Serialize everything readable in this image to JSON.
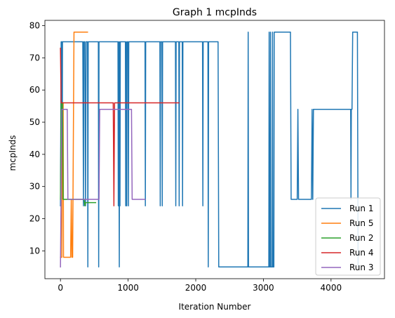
{
  "chart_data": {
    "type": "line",
    "title": "Graph 1 mcpInds",
    "xlabel": "Iteration Number",
    "ylabel": "mcpInds",
    "xlim": [
      -230,
      4790
    ],
    "ylim": [
      1.35,
      81.65
    ],
    "xticks": [
      0,
      1000,
      2000,
      3000,
      4000
    ],
    "yticks": [
      10,
      20,
      30,
      40,
      50,
      60,
      70,
      80
    ],
    "xtick_labels": [
      "0",
      "1000",
      "2000",
      "3000",
      "4000"
    ],
    "ytick_labels": [
      "10",
      "20",
      "30",
      "40",
      "50",
      "60",
      "70",
      "80"
    ],
    "grid": false,
    "legend_position": "lower-right",
    "series": [
      {
        "name": "Run 1",
        "color": "#1f77b4",
        "points": [
          [
            0,
            24
          ],
          [
            10,
            75
          ],
          [
            20,
            75
          ],
          [
            25,
            26
          ],
          [
            30,
            75
          ],
          [
            330,
            75
          ],
          [
            340,
            24
          ],
          [
            345,
            75
          ],
          [
            360,
            75
          ],
          [
            370,
            24
          ],
          [
            380,
            75
          ],
          [
            400,
            75
          ],
          [
            405,
            5
          ],
          [
            410,
            75
          ],
          [
            560,
            75
          ],
          [
            565,
            5
          ],
          [
            570,
            75
          ],
          [
            850,
            75
          ],
          [
            855,
            24
          ],
          [
            860,
            75
          ],
          [
            870,
            5
          ],
          [
            875,
            75
          ],
          [
            880,
            24
          ],
          [
            885,
            75
          ],
          [
            960,
            75
          ],
          [
            965,
            24
          ],
          [
            970,
            75
          ],
          [
            980,
            24
          ],
          [
            985,
            75
          ],
          [
            1000,
            75
          ],
          [
            1005,
            24
          ],
          [
            1010,
            75
          ],
          [
            1250,
            75
          ],
          [
            1255,
            24
          ],
          [
            1260,
            75
          ],
          [
            1470,
            75
          ],
          [
            1475,
            24
          ],
          [
            1480,
            75
          ],
          [
            1500,
            75
          ],
          [
            1505,
            24
          ],
          [
            1510,
            75
          ],
          [
            1700,
            75
          ],
          [
            1705,
            24
          ],
          [
            1710,
            75
          ],
          [
            1750,
            75
          ],
          [
            1755,
            24
          ],
          [
            1760,
            75
          ],
          [
            1800,
            75
          ],
          [
            1805,
            24
          ],
          [
            1810,
            75
          ],
          [
            2100,
            75
          ],
          [
            2105,
            24
          ],
          [
            2110,
            75
          ],
          [
            2180,
            75
          ],
          [
            2185,
            5
          ],
          [
            2190,
            75
          ],
          [
            2330,
            75
          ],
          [
            2340,
            5
          ],
          [
            2770,
            5
          ],
          [
            2775,
            78
          ],
          [
            2780,
            5
          ],
          [
            3080,
            5
          ],
          [
            3085,
            78
          ],
          [
            3090,
            5
          ],
          [
            3100,
            5
          ],
          [
            3105,
            78
          ],
          [
            3110,
            5
          ],
          [
            3130,
            5
          ],
          [
            3135,
            78
          ],
          [
            3140,
            5
          ],
          [
            3155,
            5
          ],
          [
            3160,
            78
          ],
          [
            3400,
            78
          ],
          [
            3410,
            26
          ],
          [
            3500,
            26
          ],
          [
            3510,
            54
          ],
          [
            3520,
            26
          ],
          [
            3710,
            26
          ],
          [
            3720,
            54
          ],
          [
            3730,
            26
          ],
          [
            3740,
            54
          ],
          [
            4290,
            54
          ],
          [
            4295,
            26
          ],
          [
            4300,
            54
          ],
          [
            4310,
            54
          ],
          [
            4320,
            78
          ],
          [
            4390,
            78
          ],
          [
            4400,
            5
          ]
        ]
      },
      {
        "name": "Run 5",
        "color": "#ff7f0e",
        "points": [
          [
            0,
            8
          ],
          [
            20,
            8
          ],
          [
            30,
            56
          ],
          [
            40,
            56
          ],
          [
            45,
            8
          ],
          [
            150,
            8
          ],
          [
            160,
            26
          ],
          [
            170,
            8
          ],
          [
            180,
            8
          ],
          [
            200,
            78
          ],
          [
            400,
            78
          ]
        ]
      },
      {
        "name": "Run 2",
        "color": "#2ca02c",
        "points": [
          [
            0,
            26
          ],
          [
            10,
            56
          ],
          [
            30,
            56
          ],
          [
            40,
            26
          ],
          [
            350,
            26
          ],
          [
            360,
            24
          ],
          [
            370,
            25
          ],
          [
            520,
            25
          ]
        ]
      },
      {
        "name": "Run 4",
        "color": "#d62728",
        "points": [
          [
            0,
            73
          ],
          [
            10,
            56
          ],
          [
            30,
            56
          ],
          [
            40,
            56
          ],
          [
            780,
            56
          ],
          [
            790,
            24
          ],
          [
            800,
            56
          ],
          [
            1750,
            56
          ]
        ]
      },
      {
        "name": "Run 3",
        "color": "#9467bd",
        "points": [
          [
            0,
            5
          ],
          [
            20,
            54
          ],
          [
            100,
            54
          ],
          [
            110,
            26
          ],
          [
            570,
            26
          ],
          [
            580,
            54
          ],
          [
            1050,
            54
          ],
          [
            1060,
            26
          ],
          [
            1250,
            26
          ]
        ]
      }
    ]
  }
}
